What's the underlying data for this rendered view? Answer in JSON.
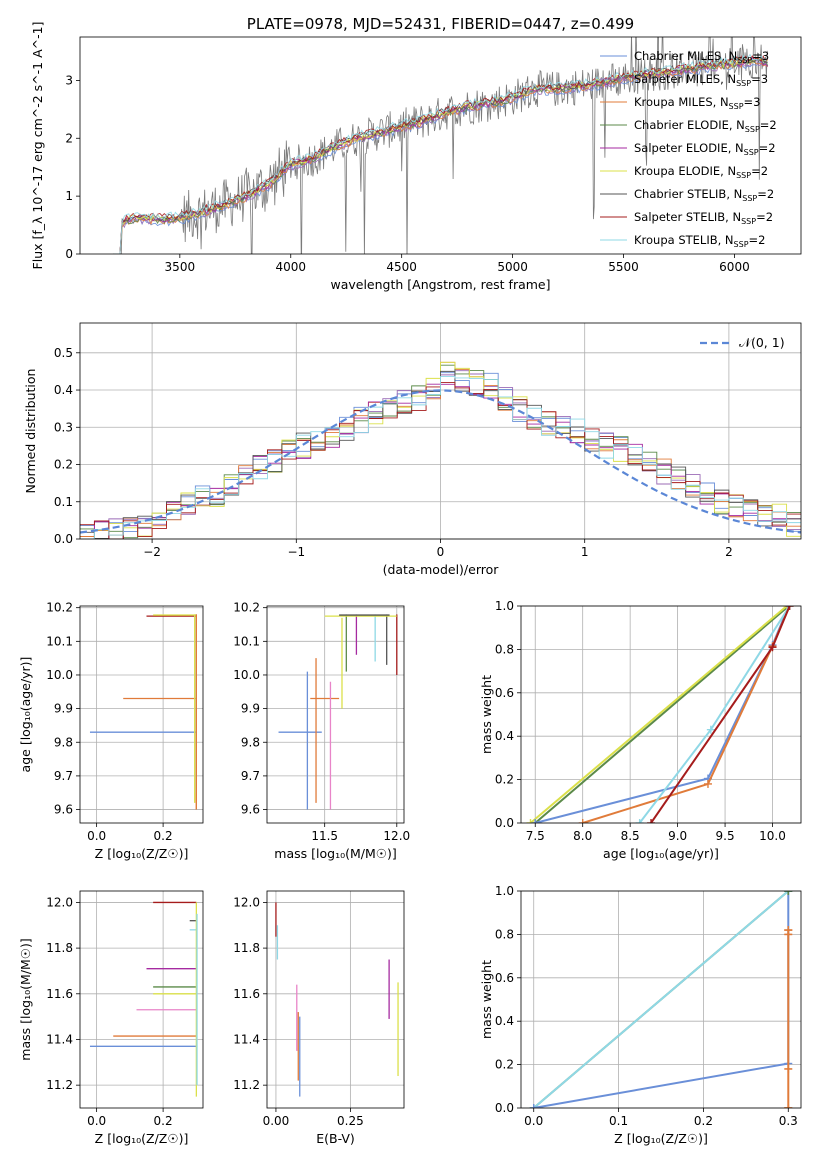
{
  "chart_data": [
    {
      "type": "line",
      "title": "PLATE=0978, MJD=52431, FIBERID=0447, z=0.499",
      "xlabel": "wavelength [Angstrom, rest frame]",
      "ylabel": "Flux [f_λ 10^-17 erg cm^-2 s^-1 A^-1]",
      "xlim": [
        3050,
        6300
      ],
      "ylim": [
        0,
        3.75
      ],
      "xticks": [
        "3500",
        "4000",
        "4500",
        "5000",
        "5500",
        "6000"
      ],
      "yticks": [
        "0",
        "1",
        "2",
        "3"
      ],
      "grid": false,
      "legend_position": "top-right",
      "data_range": [
        3200,
        6150
      ],
      "data_note": "noisy observed spectrum (grey) with 9 overlapping stellar population model fits",
      "series": [
        {
          "name": "Chabrier MILES, N_SSP=3",
          "color": "#6a8fd8"
        },
        {
          "name": "Salpeter MILES, N_SSP=3",
          "color": "#9b6bb6"
        },
        {
          "name": "Kroupa MILES, N_SSP=3",
          "color": "#e07b3a"
        },
        {
          "name": "Chabrier ELODIE, N_SSP=2",
          "color": "#5b8a49"
        },
        {
          "name": "Salpeter ELODIE, N_SSP=2",
          "color": "#a52aa0"
        },
        {
          "name": "Kroupa ELODIE, N_SSP=2",
          "color": "#dbe04a"
        },
        {
          "name": "Chabrier STELIB, N_SSP=2",
          "color": "#555555"
        },
        {
          "name": "Salpeter STELIB, N_SSP=2",
          "color": "#a51c1c"
        },
        {
          "name": "Kroupa STELIB, N_SSP=2",
          "color": "#8fd8e6"
        }
      ],
      "envelope": {
        "x": [
          3200,
          3240,
          3300,
          3400,
          3500,
          3600,
          3700,
          3800,
          3900,
          4000,
          4100,
          4200,
          4300,
          4400,
          4500,
          4600,
          4700,
          4800,
          4900,
          5000,
          5100,
          5200,
          5300,
          5400,
          5500,
          5600,
          5700,
          5800,
          5900,
          6000,
          6100,
          6150
        ],
        "y": [
          0.0,
          0.55,
          0.62,
          0.6,
          0.62,
          0.72,
          0.85,
          1.0,
          1.2,
          1.55,
          1.65,
          1.85,
          2.0,
          2.1,
          2.2,
          2.3,
          2.45,
          2.55,
          2.6,
          2.7,
          2.85,
          2.85,
          2.9,
          2.95,
          3.05,
          3.1,
          3.15,
          3.2,
          3.25,
          3.3,
          3.35,
          3.3
        ]
      }
    },
    {
      "type": "line",
      "xlabel": "(data-model)/error",
      "ylabel": "Normed distribution",
      "xlim": [
        -2.5,
        2.5
      ],
      "ylim": [
        0,
        0.58
      ],
      "xticks": [
        "−2",
        "−1",
        "0",
        "1",
        "2"
      ],
      "yticks": [
        "0.0",
        "0.1",
        "0.2",
        "0.3",
        "0.4",
        "0.5"
      ],
      "grid": true,
      "legend_position": "top-right",
      "legend": [
        "𝒩(0, 1)"
      ],
      "reference_curve": {
        "mu": 0,
        "sigma": 1,
        "color": "#5b87d6"
      },
      "hist_edges": [
        -2.5,
        -2.4,
        -2.3,
        -2.2,
        -2.1,
        -2.0,
        -1.9,
        -1.8,
        -1.7,
        -1.6,
        -1.5,
        -1.4,
        -1.3,
        -1.2,
        -1.1,
        -1.0,
        -0.9,
        -0.8,
        -0.7,
        -0.6,
        -0.5,
        -0.4,
        -0.3,
        -0.2,
        -0.1,
        0.0,
        0.1,
        0.2,
        0.3,
        0.4,
        0.5,
        0.6,
        0.7,
        0.8,
        0.9,
        1.0,
        1.1,
        1.2,
        1.3,
        1.4,
        1.5,
        1.6,
        1.7,
        1.8,
        1.9,
        2.0,
        2.1,
        2.2,
        2.3,
        2.4,
        2.5
      ],
      "hist_base": [
        0.01,
        0.02,
        0.02,
        0.03,
        0.04,
        0.06,
        0.08,
        0.1,
        0.11,
        0.12,
        0.15,
        0.18,
        0.19,
        0.21,
        0.24,
        0.25,
        0.27,
        0.28,
        0.3,
        0.32,
        0.34,
        0.36,
        0.37,
        0.38,
        0.4,
        0.44,
        0.43,
        0.42,
        0.41,
        0.38,
        0.35,
        0.33,
        0.31,
        0.3,
        0.29,
        0.27,
        0.25,
        0.24,
        0.23,
        0.21,
        0.18,
        0.16,
        0.14,
        0.12,
        0.1,
        0.09,
        0.08,
        0.07,
        0.06,
        0.04
      ]
    },
    {
      "type": "scatter",
      "xlabel": "Z [log₁₀(Z/Z☉)]",
      "ylabel": "age  [log₁₀(age/yr)]",
      "xlim": [
        -0.05,
        0.32
      ],
      "ylim": [
        9.56,
        10.205
      ],
      "xticks": [
        "0.0",
        "0.2"
      ],
      "yticks": [
        "9.6",
        "9.7",
        "9.8",
        "9.9",
        "10.0",
        "10.1",
        "10.2"
      ],
      "grid": true,
      "points": [
        {
          "x": -0.02,
          "x2": 0.3,
          "y": 9.83,
          "y2": 9.83,
          "color": "#6a8fd8"
        },
        {
          "x": 0.08,
          "x2": 0.3,
          "y": 9.93,
          "y2": 9.93,
          "color": "#e07b3a"
        },
        {
          "x": 0.15,
          "x2": 0.3,
          "y": 10.175,
          "y2": 10.175,
          "color": "#a51c1c"
        },
        {
          "x": 0.17,
          "x2": 0.3,
          "y": 10.178,
          "y2": 10.178,
          "color": "#dbe04a"
        },
        {
          "x": 0.3,
          "x2": 0.3,
          "y": 9.6,
          "y2": 10.18,
          "color": "#e07b3a"
        },
        {
          "x": 0.295,
          "x2": 0.295,
          "y": 9.62,
          "y2": 10.18,
          "color": "#dbe04a"
        },
        {
          "x": 0.3,
          "x2": 0.3,
          "y": 9.65,
          "y2": 10.18,
          "color": "#8fd8e6"
        }
      ]
    },
    {
      "type": "scatter",
      "xlabel": "mass [log₁₀(M/M☉)]",
      "xlim": [
        11.1,
        12.05
      ],
      "ylim": [
        9.56,
        10.205
      ],
      "xticks": [
        "11.5",
        "12.0"
      ],
      "yticks": [
        "9.6",
        "9.7",
        "9.8",
        "9.9",
        "10.0",
        "10.1",
        "10.2"
      ],
      "grid": true,
      "points": [
        {
          "x": 11.18,
          "x2": 11.48,
          "y": 9.83,
          "y2": 9.83,
          "color": "#6a8fd8"
        },
        {
          "x": 11.38,
          "x2": 11.38,
          "y": 9.6,
          "y2": 10.01,
          "color": "#6a8fd8"
        },
        {
          "x": 11.44,
          "x2": 11.44,
          "y": 9.62,
          "y2": 10.05,
          "color": "#e07b3a"
        },
        {
          "x": 11.4,
          "x2": 11.6,
          "y": 9.93,
          "y2": 9.93,
          "color": "#e07b3a"
        },
        {
          "x": 11.54,
          "x2": 11.54,
          "y": 9.6,
          "y2": 9.98,
          "color": "#e884c8"
        },
        {
          "x": 11.62,
          "x2": 11.62,
          "y": 9.9,
          "y2": 10.17,
          "color": "#dbe04a"
        },
        {
          "x": 11.65,
          "x2": 11.65,
          "y": 10.01,
          "y2": 10.18,
          "color": "#5b8a49"
        },
        {
          "x": 11.72,
          "x2": 11.72,
          "y": 10.06,
          "y2": 10.18,
          "color": "#a52aa0"
        },
        {
          "x": 11.93,
          "x2": 11.93,
          "y": 10.03,
          "y2": 10.18,
          "color": "#555555"
        },
        {
          "x": 12.0,
          "x2": 12.0,
          "y": 10.0,
          "y2": 10.18,
          "color": "#a51c1c"
        },
        {
          "x": 11.85,
          "x2": 11.85,
          "y": 10.04,
          "y2": 10.18,
          "color": "#8fd8e6"
        },
        {
          "x": 11.5,
          "x2": 12.0,
          "y": 10.175,
          "y2": 10.175,
          "color": "#dbe04a"
        },
        {
          "x": 11.6,
          "x2": 11.95,
          "y": 10.178,
          "y2": 10.178,
          "color": "#555555"
        }
      ]
    },
    {
      "type": "line",
      "xlabel": "age  [log₁₀(age/yr)]",
      "ylabel": "mass weight",
      "xlim": [
        7.35,
        10.3
      ],
      "ylim": [
        0,
        1.0
      ],
      "xticks": [
        "7.5",
        "8.0",
        "8.5",
        "9.0",
        "9.5",
        "10.0"
      ],
      "yticks": [
        "0.0",
        "0.2",
        "0.4",
        "0.6",
        "0.8",
        "1.0"
      ],
      "grid": true,
      "series": [
        {
          "color": "#5b8a49",
          "x": [
            7.5,
            10.17
          ],
          "y": [
            0.0,
            1.0
          ]
        },
        {
          "color": "#dbe04a",
          "x": [
            7.45,
            10.15
          ],
          "y": [
            0.0,
            1.0
          ]
        },
        {
          "color": "#6a8fd8",
          "x": [
            7.5,
            9.32,
            10.0,
            10.17
          ],
          "y": [
            0.0,
            0.205,
            0.82,
            1.0
          ]
        },
        {
          "color": "#e07b3a",
          "x": [
            8.0,
            9.32,
            10.0,
            10.18
          ],
          "y": [
            0.0,
            0.18,
            0.815,
            1.0
          ]
        },
        {
          "color": "#8fd8e6",
          "x": [
            8.6,
            9.35,
            10.18
          ],
          "y": [
            0.0,
            0.43,
            1.0
          ]
        },
        {
          "color": "#a51c1c",
          "x": [
            8.72,
            10.0,
            10.18
          ],
          "y": [
            0.0,
            0.81,
            1.0
          ]
        }
      ]
    },
    {
      "type": "scatter",
      "xlabel": "Z [log₁₀(Z/Z☉)]",
      "ylabel": "mass [log₁₀(M/M☉)]",
      "xlim": [
        -0.05,
        0.32
      ],
      "ylim": [
        11.1,
        12.05
      ],
      "xticks": [
        "0.0",
        "0.2"
      ],
      "yticks": [
        "11.2",
        "11.4",
        "11.6",
        "11.8",
        "12.0"
      ],
      "grid": true,
      "points": [
        {
          "x": -0.02,
          "x2": 0.3,
          "y": 11.37,
          "y2": 11.37,
          "color": "#6a8fd8"
        },
        {
          "x": 0.05,
          "x2": 0.3,
          "y": 11.415,
          "y2": 11.415,
          "color": "#e07b3a"
        },
        {
          "x": 0.12,
          "x2": 0.3,
          "y": 11.53,
          "y2": 11.53,
          "color": "#e884c8"
        },
        {
          "x": 0.17,
          "x2": 0.3,
          "y": 11.6,
          "y2": 11.6,
          "color": "#dbe04a"
        },
        {
          "x": 0.17,
          "x2": 0.3,
          "y": 11.63,
          "y2": 11.63,
          "color": "#5b8a49"
        },
        {
          "x": 0.15,
          "x2": 0.3,
          "y": 11.71,
          "y2": 11.71,
          "color": "#a52aa0"
        },
        {
          "x": 0.28,
          "x2": 0.3,
          "y": 11.88,
          "y2": 11.88,
          "color": "#8fd8e6"
        },
        {
          "x": 0.28,
          "x2": 0.3,
          "y": 11.92,
          "y2": 11.92,
          "color": "#555555"
        },
        {
          "x": 0.17,
          "x2": 0.3,
          "y": 12.0,
          "y2": 12.0,
          "color": "#a51c1c"
        },
        {
          "x": 0.3,
          "x2": 0.3,
          "y": 11.15,
          "y2": 12.0,
          "color": "#dbe04a"
        },
        {
          "x": 0.302,
          "x2": 0.302,
          "y": 11.2,
          "y2": 11.95,
          "color": "#8fd8e6"
        }
      ]
    },
    {
      "type": "scatter",
      "xlabel": "E(B-V)",
      "xlim": [
        -0.03,
        0.43
      ],
      "ylim": [
        11.1,
        12.05
      ],
      "xticks": [
        "0.00",
        "0.25"
      ],
      "yticks": [
        "11.2",
        "11.4",
        "11.6",
        "11.8",
        "12.0"
      ],
      "grid": true,
      "points": [
        {
          "x": 0.0,
          "x2": 0.0,
          "y": 11.85,
          "y2": 12.0,
          "color": "#a51c1c"
        },
        {
          "x": 0.005,
          "x2": 0.005,
          "y": 11.75,
          "y2": 11.9,
          "color": "#8fd8e6"
        },
        {
          "x": 0.07,
          "x2": 0.07,
          "y": 11.35,
          "y2": 11.64,
          "color": "#e884c8"
        },
        {
          "x": 0.075,
          "x2": 0.075,
          "y": 11.22,
          "y2": 11.52,
          "color": "#e07b3a"
        },
        {
          "x": 0.08,
          "x2": 0.08,
          "y": 11.15,
          "y2": 11.5,
          "color": "#6a8fd8"
        },
        {
          "x": 0.38,
          "x2": 0.38,
          "y": 11.49,
          "y2": 11.75,
          "color": "#a52aa0"
        },
        {
          "x": 0.41,
          "x2": 0.41,
          "y": 11.24,
          "y2": 11.65,
          "color": "#dbe04a"
        }
      ]
    },
    {
      "type": "line",
      "xlabel": "Z [log₁₀(Z/Z☉)]",
      "ylabel": "mass weight",
      "xlim": [
        -0.015,
        0.315
      ],
      "ylim": [
        0,
        1.0
      ],
      "xticks": [
        "0.0",
        "0.1",
        "0.2",
        "0.3"
      ],
      "yticks": [
        "0.0",
        "0.2",
        "0.4",
        "0.6",
        "0.8",
        "1.0"
      ],
      "grid": true,
      "series": [
        {
          "color": "#5b8a49",
          "x": [
            0.0,
            0.3
          ],
          "y": [
            0.0,
            1.0
          ]
        },
        {
          "color": "#8fd8e6",
          "x": [
            0.0,
            0.3
          ],
          "y": [
            0.0,
            1.0
          ]
        },
        {
          "color": "#6a8fd8",
          "x": [
            0.0,
            0.3,
            0.3
          ],
          "y": [
            0.0,
            0.205,
            1.0
          ]
        },
        {
          "color": "#e07b3a",
          "x": [
            0.3,
            0.3
          ],
          "y": [
            0.0,
            0.82
          ]
        }
      ],
      "markers": [
        {
          "x": 0.3,
          "y": 0.82,
          "color": "#e07b3a"
        },
        {
          "x": 0.3,
          "y": 0.8,
          "color": "#e07b3a"
        },
        {
          "x": 0.3,
          "y": 0.18,
          "color": "#e07b3a"
        },
        {
          "x": 0.3,
          "y": 0.0,
          "color": "#e07b3a"
        },
        {
          "x": 0.3,
          "y": 1.0,
          "color": "#5b8a49"
        }
      ]
    }
  ]
}
